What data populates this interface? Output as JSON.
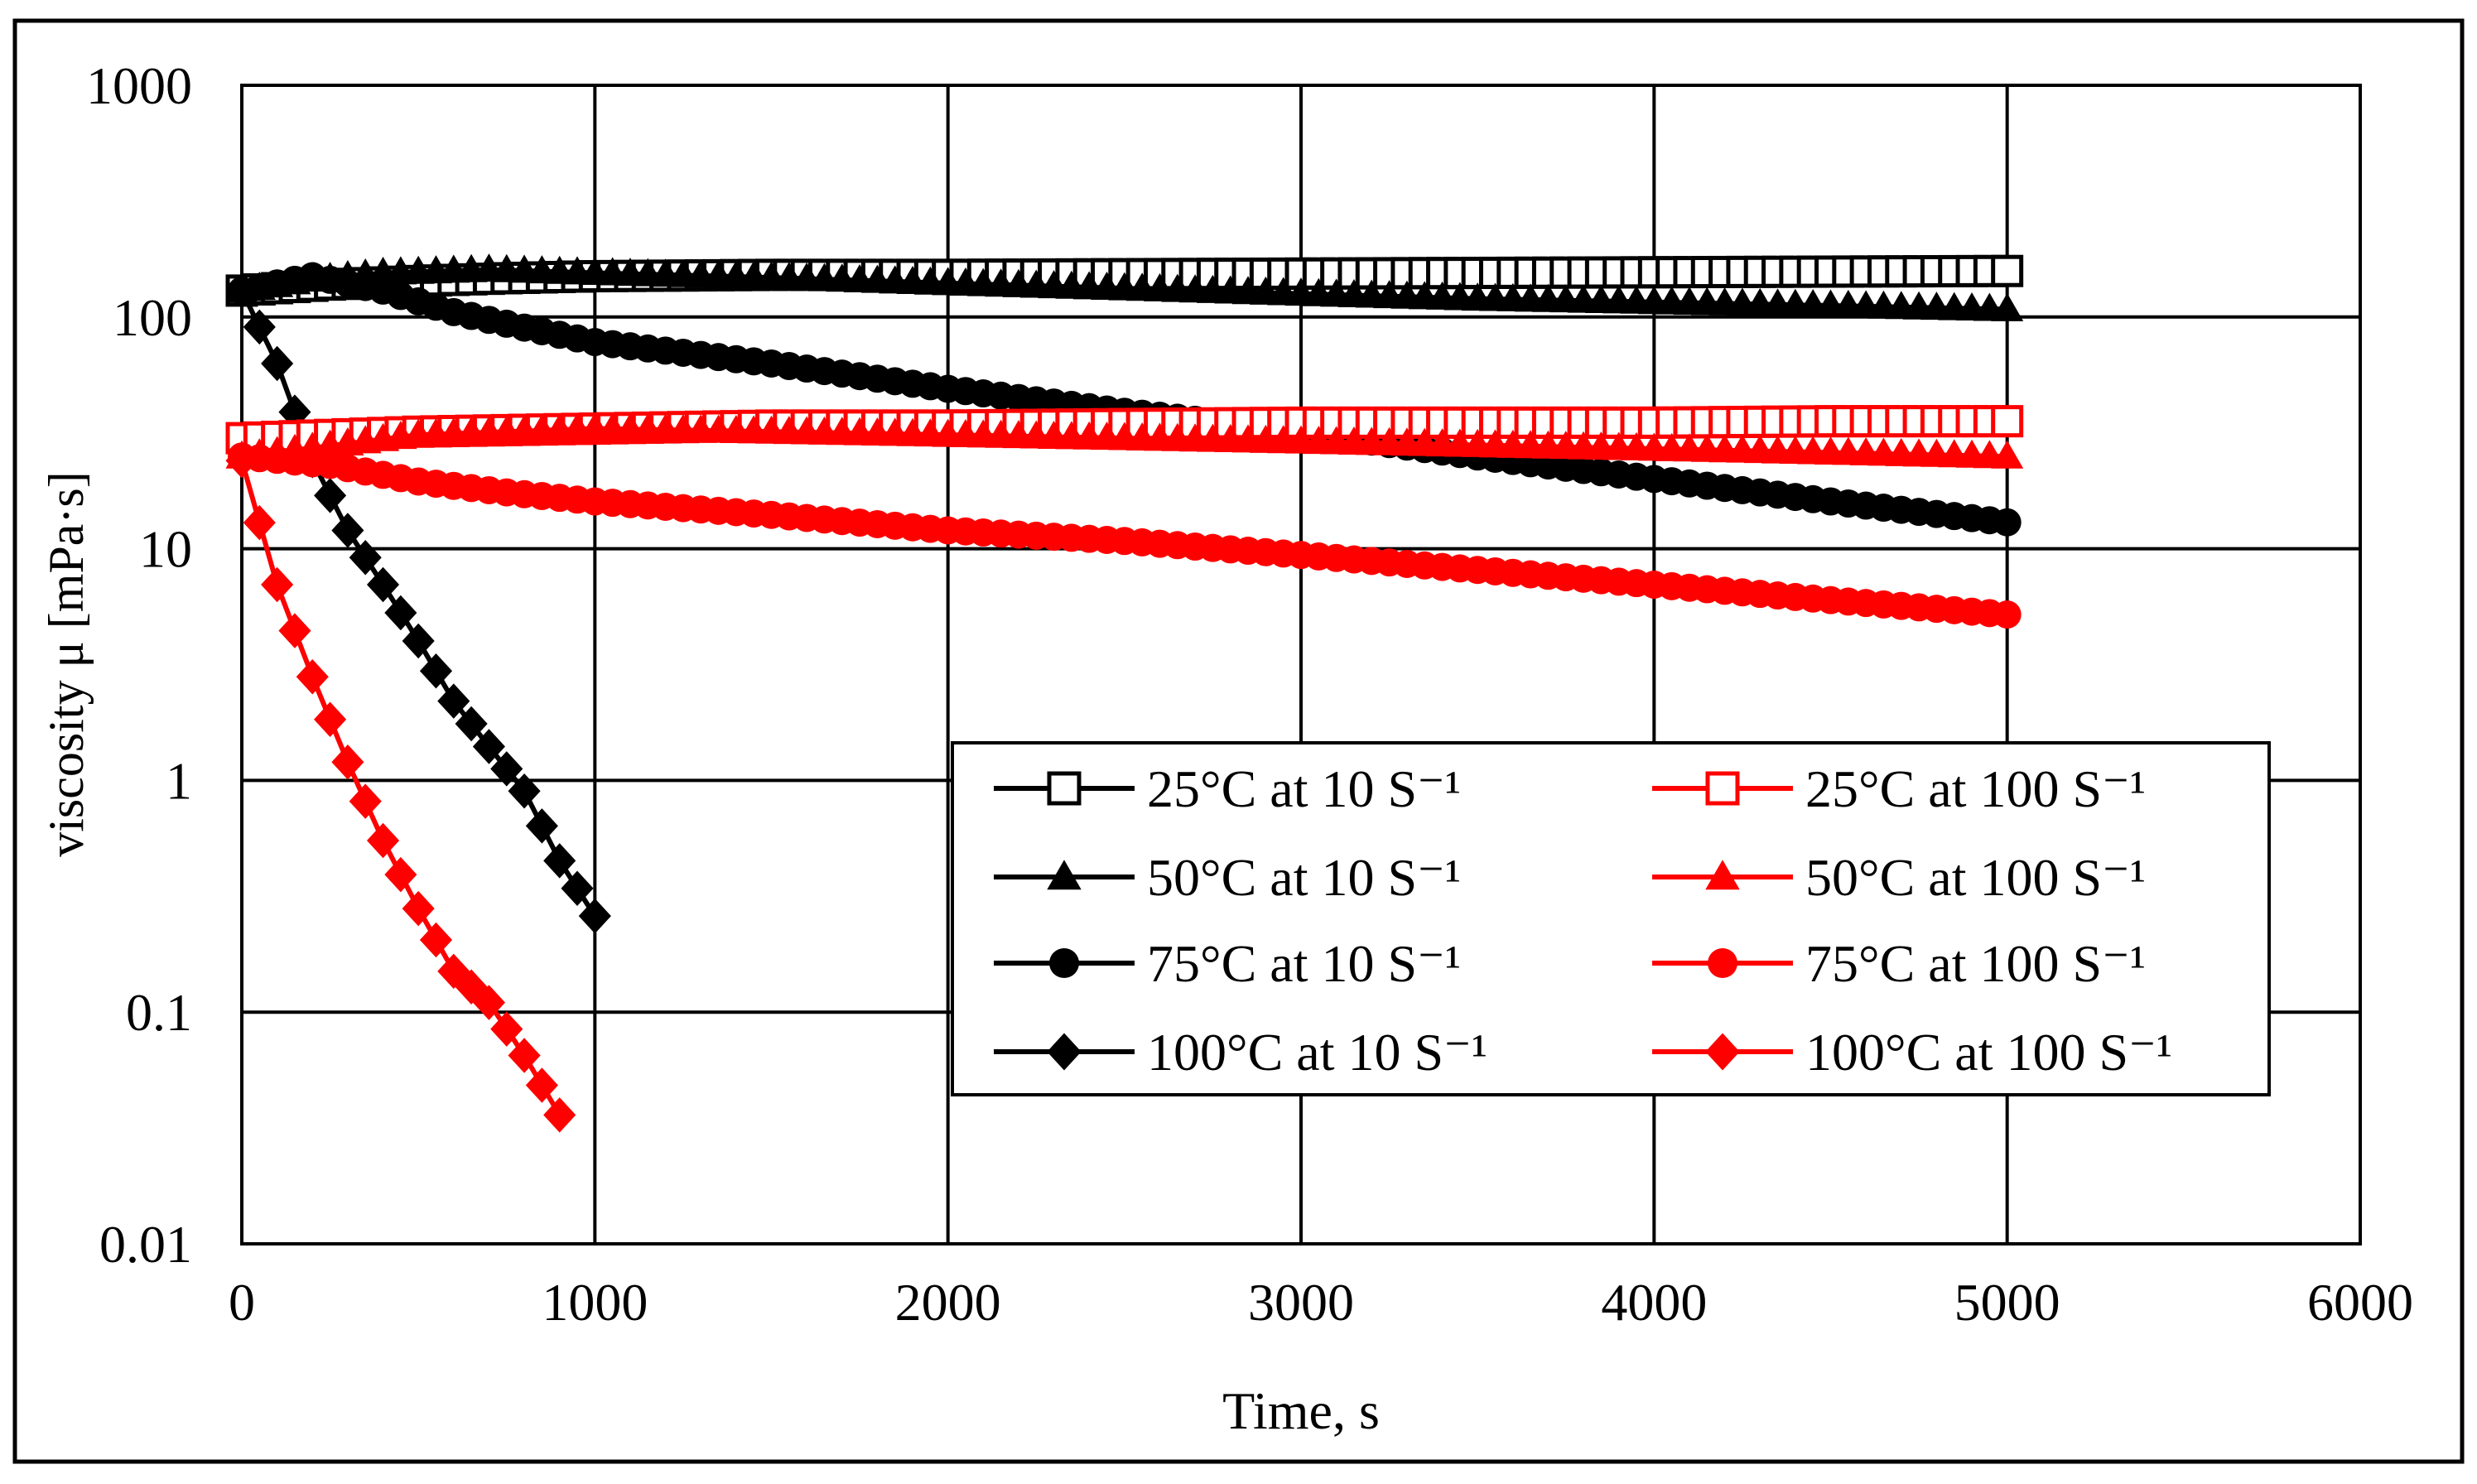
{
  "chart_data": {
    "type": "scatter",
    "title": "",
    "xlabel": "Time, s",
    "ylabel": "viscosity μ [mPa·s]",
    "xlim": [
      0,
      6000
    ],
    "ylim": [
      0.01,
      1000
    ],
    "yscale": "log",
    "x_ticks": [
      0,
      1000,
      2000,
      3000,
      4000,
      5000,
      6000
    ],
    "x_tick_labels": [
      "0",
      "1000",
      "2000",
      "3000",
      "4000",
      "5000",
      "6000"
    ],
    "y_ticks": [
      0.01,
      0.1,
      1,
      10,
      100,
      1000
    ],
    "y_tick_labels": [
      "0.01",
      "0.1",
      "1",
      "10",
      "100",
      "1000"
    ],
    "grid": true,
    "legend_position": "lower-right",
    "colors": {
      "black": "#000000",
      "red": "#ff0000"
    },
    "series": [
      {
        "name": "25°C at 10 S⁻¹",
        "color": "#000000",
        "marker": "square-open",
        "points": [
          [
            0,
            130
          ],
          [
            250,
            138
          ],
          [
            500,
            143
          ],
          [
            750,
            147
          ],
          [
            1000,
            150
          ],
          [
            1500,
            152
          ],
          [
            2000,
            152
          ],
          [
            2500,
            153
          ],
          [
            3000,
            154
          ],
          [
            3500,
            155
          ],
          [
            4000,
            156
          ],
          [
            4500,
            157
          ],
          [
            5000,
            158
          ]
        ]
      },
      {
        "name": "50°C at 10 S⁻¹",
        "color": "#000000",
        "marker": "triangle",
        "points": [
          [
            0,
            130
          ],
          [
            200,
            145
          ],
          [
            400,
            155
          ],
          [
            700,
            160
          ],
          [
            1000,
            155
          ],
          [
            1500,
            148
          ],
          [
            2000,
            140
          ],
          [
            2500,
            133
          ],
          [
            3000,
            126
          ],
          [
            3500,
            120
          ],
          [
            4000,
            116
          ],
          [
            4500,
            112
          ],
          [
            5000,
            108
          ]
        ]
      },
      {
        "name": "75°C at 10 S⁻¹",
        "color": "#000000",
        "marker": "circle",
        "points": [
          [
            0,
            130
          ],
          [
            200,
            150
          ],
          [
            400,
            130
          ],
          [
            600,
            105
          ],
          [
            800,
            90
          ],
          [
            1000,
            78
          ],
          [
            1500,
            63
          ],
          [
            2000,
            49
          ],
          [
            2500,
            39
          ],
          [
            3000,
            32
          ],
          [
            3500,
            25
          ],
          [
            4000,
            20
          ],
          [
            4500,
            16
          ],
          [
            5000,
            13
          ]
        ]
      },
      {
        "name": "100°C at 10 S⁻¹",
        "color": "#000000",
        "marker": "diamond",
        "points": [
          [
            0,
            130
          ],
          [
            100,
            63
          ],
          [
            200,
            24
          ],
          [
            300,
            12
          ],
          [
            400,
            7
          ],
          [
            500,
            4
          ],
          [
            600,
            2.2
          ],
          [
            700,
            1.4
          ],
          [
            800,
            0.9
          ],
          [
            900,
            0.45
          ],
          [
            1000,
            0.26
          ]
        ]
      },
      {
        "name": "25°C at 100 S⁻¹",
        "color": "#ff0000",
        "marker": "square-open",
        "points": [
          [
            0,
            30
          ],
          [
            500,
            32
          ],
          [
            1000,
            33
          ],
          [
            1500,
            34
          ],
          [
            2000,
            34
          ],
          [
            2500,
            34.5
          ],
          [
            3000,
            35
          ],
          [
            3500,
            35
          ],
          [
            4000,
            35
          ],
          [
            4500,
            35.5
          ],
          [
            5000,
            35.5
          ]
        ]
      },
      {
        "name": "50°C at 100 S⁻¹",
        "color": "#ff0000",
        "marker": "triangle",
        "points": [
          [
            0,
            25
          ],
          [
            500,
            31
          ],
          [
            1000,
            33
          ],
          [
            1500,
            32
          ],
          [
            2000,
            31
          ],
          [
            2500,
            30
          ],
          [
            3000,
            29
          ],
          [
            3500,
            28
          ],
          [
            4000,
            27
          ],
          [
            4500,
            26
          ],
          [
            5000,
            25
          ]
        ]
      },
      {
        "name": "75°C at 100 S⁻¹",
        "color": "#ff0000",
        "marker": "circle",
        "points": [
          [
            0,
            25
          ],
          [
            250,
            23
          ],
          [
            500,
            19.5
          ],
          [
            750,
            17.5
          ],
          [
            1000,
            16
          ],
          [
            1500,
            14
          ],
          [
            2000,
            12
          ],
          [
            2500,
            10.8
          ],
          [
            3000,
            9.4
          ],
          [
            3500,
            8.1
          ],
          [
            4000,
            7.0
          ],
          [
            4500,
            6.0
          ],
          [
            5000,
            5.2
          ]
        ]
      },
      {
        "name": "100°C at 100 S⁻¹",
        "color": "#ff0000",
        "marker": "diamond",
        "points": [
          [
            0,
            24
          ],
          [
            100,
            7
          ],
          [
            200,
            2.8
          ],
          [
            300,
            1.2
          ],
          [
            400,
            0.55
          ],
          [
            500,
            0.28
          ],
          [
            600,
            0.15
          ],
          [
            700,
            0.11
          ],
          [
            800,
            0.065
          ],
          [
            900,
            0.036
          ]
        ]
      }
    ]
  }
}
